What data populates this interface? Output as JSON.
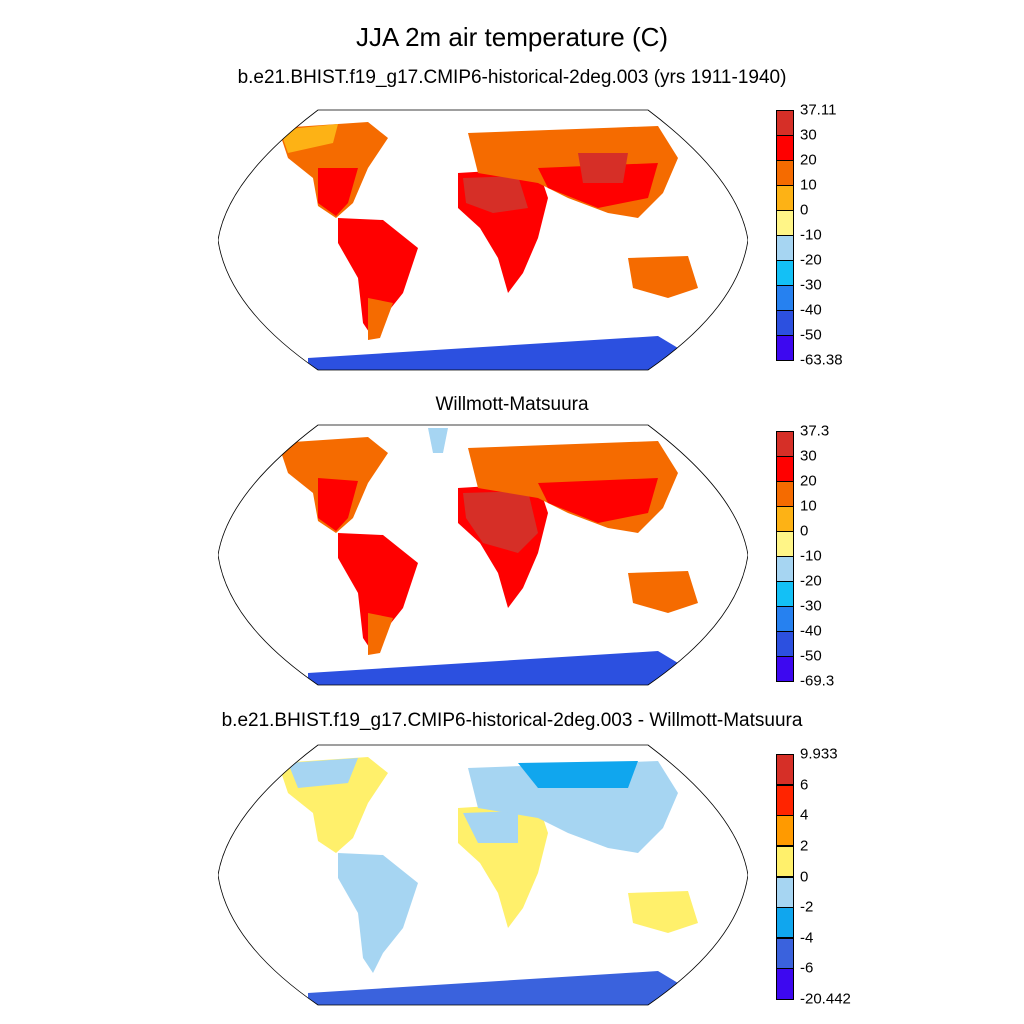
{
  "title": "JJA 2m air temperature (C)",
  "panels": [
    {
      "title": "b.e21.BHIST.f19_g17.CMIP6-historical-2deg.003 (yrs 1911-1940)",
      "colorbar": {
        "labels": [
          "37.11",
          "30",
          "20",
          "10",
          "0",
          "-10",
          "-20",
          "-30",
          "-40",
          "-50",
          "-63.38"
        ],
        "colors": [
          "#d62f27",
          "#ff0000",
          "#f56b00",
          "#fdb215",
          "#fff587",
          "#a6d5f2",
          "#13c0f6",
          "#2681f0",
          "#2c50e0",
          "#3d08f0"
        ]
      }
    },
    {
      "title": "Willmott-Matsuura",
      "colorbar": {
        "labels": [
          "37.3",
          "30",
          "20",
          "10",
          "0",
          "-10",
          "-20",
          "-30",
          "-40",
          "-50",
          "-69.3"
        ],
        "colors": [
          "#d62f27",
          "#ff0000",
          "#f56b00",
          "#fdb215",
          "#fff587",
          "#a6d5f2",
          "#13c0f6",
          "#2681f0",
          "#2c50e0",
          "#3d08f0"
        ]
      }
    },
    {
      "title": "b.e21.BHIST.f19_g17.CMIP6-historical-2deg.003 - Willmott-Matsuura",
      "colorbar": {
        "labels": [
          "9.933",
          "6",
          "4",
          "2",
          "0",
          "-2",
          "-4",
          "-6",
          "-20.442"
        ],
        "colors": [
          "#d62f27",
          "#ff2400",
          "#ff9a00",
          "#fff06b",
          "#a6d5f2",
          "#10a6ee",
          "#3a62dd",
          "#3d08f0"
        ]
      }
    }
  ]
}
